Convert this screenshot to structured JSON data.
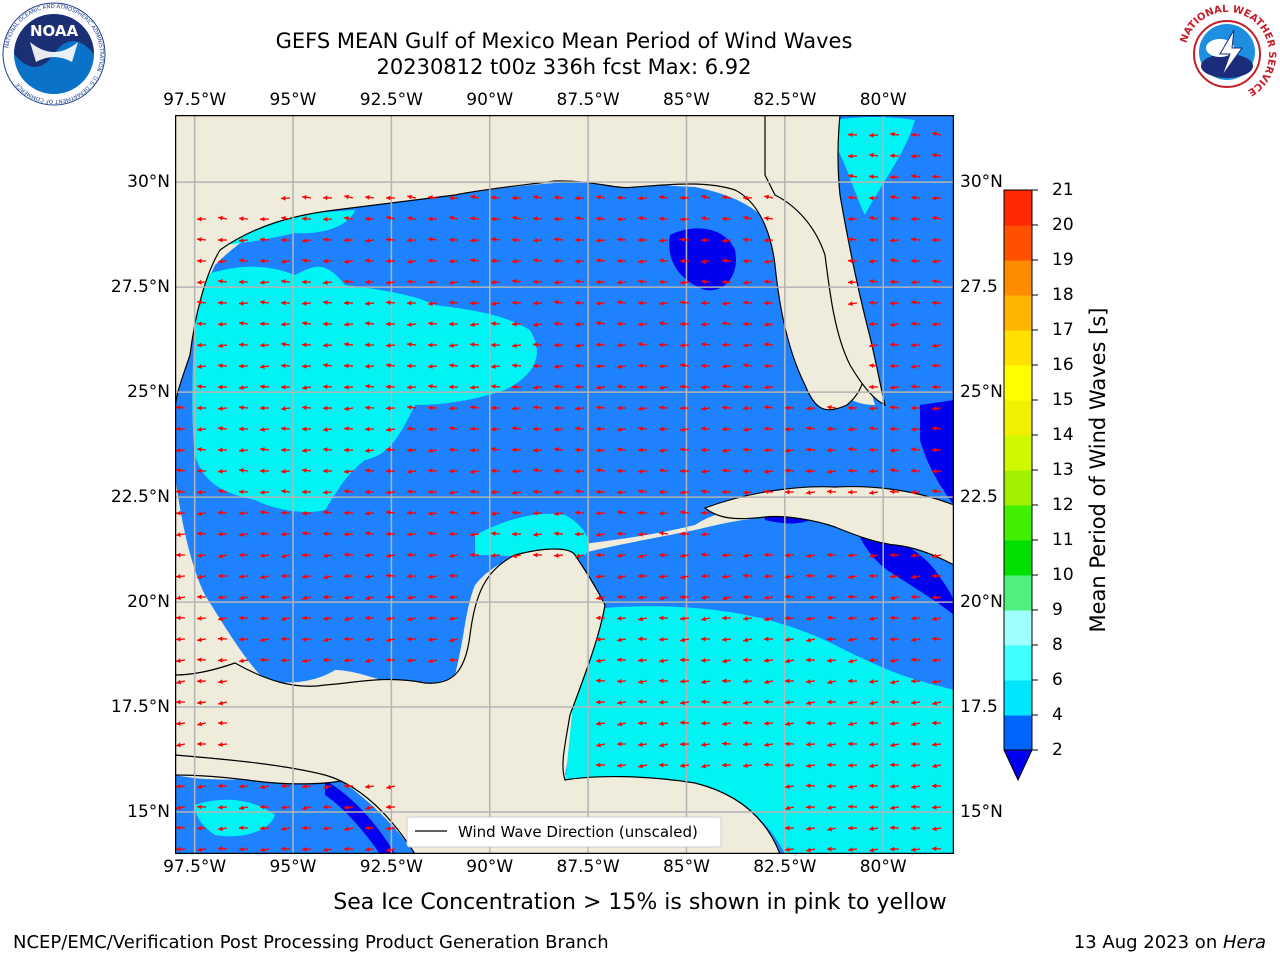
{
  "title": {
    "line1": "GEFS MEAN Gulf of Mexico Mean Period of Wind Waves",
    "line2": "20230812 t00z 336h fcst   Max: 6.92"
  },
  "logos": {
    "left": "NOAA",
    "left_ring": "NATIONAL OCEANIC AND ATMOSPHERIC ADMINISTRATION · U.S. DEPARTMENT OF COMMERCE",
    "right_ring": "NATIONAL WEATHER SERVICE"
  },
  "map": {
    "lon_labels": [
      "97.5°W",
      "95°W",
      "92.5°W",
      "90°W",
      "87.5°W",
      "85°W",
      "82.5°W",
      "80°W"
    ],
    "lat_labels_left": [
      "30°N",
      "27.5°N",
      "25°N",
      "22.5°N",
      "20°N",
      "17.5°N",
      "15°N"
    ],
    "lat_labels_right": [
      "30°N",
      "27.5",
      "25°N",
      "22.5",
      "20°N",
      "17.5",
      "15°N"
    ],
    "lon_range": [
      -98,
      -78.2
    ],
    "lat_range": [
      14,
      31.6
    ],
    "colors": {
      "land": "#efecdc",
      "band_2_4": "#1e82ff",
      "band_4_6": "#00f4f4",
      "below_2": "#0000ee",
      "arrow": "#ff0000",
      "grid": "#b4b4b4"
    },
    "legend_label": "Wind Wave Direction (unscaled)"
  },
  "colorbar": {
    "label": "Mean Period of Wind Waves [s]",
    "ticks": [
      "2",
      "4",
      "6",
      "8",
      "9",
      "10",
      "11",
      "12",
      "13",
      "14",
      "15",
      "16",
      "17",
      "18",
      "19",
      "20",
      "21"
    ],
    "colors": [
      "#0064ff",
      "#00e6ff",
      "#40ffff",
      "#a0ffff",
      "#50f080",
      "#00e000",
      "#40f000",
      "#a0f000",
      "#d0f800",
      "#f0f000",
      "#ffff00",
      "#ffe000",
      "#ffb400",
      "#ff8c00",
      "#ff5000",
      "#ff2800",
      "#ff0000"
    ],
    "under_color": "#0000ee"
  },
  "ice_note": "Sea Ice Concentration > 15% is shown in pink to yellow",
  "footer": {
    "left": "NCEP/EMC/Verification Post Processing Product Generation Branch",
    "date": "13 Aug 2023 on ",
    "machine": "Hera"
  }
}
